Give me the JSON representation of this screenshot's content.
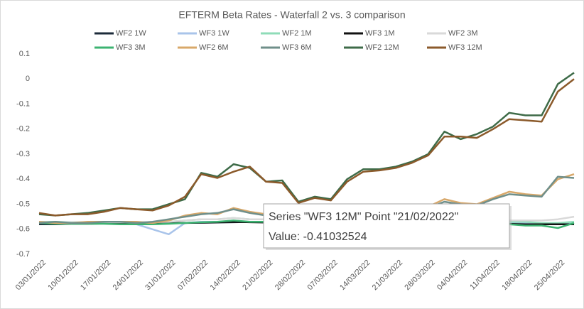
{
  "chart_data": {
    "type": "line",
    "title": "EFTERM Beta Rates - Waterfall 2 vs. 3 comparison",
    "legend": "top",
    "categories": [
      "03/01/2022",
      null,
      "10/01/2022",
      null,
      "17/01/2022",
      null,
      "24/01/2022",
      null,
      "31/01/2022",
      null,
      "07/02/2022",
      null,
      "14/02/2022",
      null,
      "21/02/2022",
      null,
      "28/02/2022",
      null,
      "07/03/2022",
      null,
      "14/03/2022",
      null,
      "21/03/2022",
      null,
      "28/03/2022",
      null,
      "04/04/2022",
      null,
      "11/04/2022",
      null,
      "18/04/2022",
      null,
      "25/04/2022",
      null
    ],
    "ylim": [
      -0.7,
      0.1
    ],
    "yticks": [
      0.1,
      0,
      -0.1,
      -0.2,
      -0.3,
      -0.4,
      -0.5,
      -0.6,
      -0.7
    ],
    "grid": false,
    "series": [
      {
        "name": "WF2 1W",
        "color": "#1c2b3a",
        "values": [
          -0.58,
          -0.58,
          -0.578,
          -0.578,
          -0.577,
          -0.577,
          -0.577,
          -0.576,
          -0.576,
          -0.575,
          -0.574,
          -0.573,
          -0.572,
          -0.571,
          -0.572,
          -0.572,
          -0.572,
          -0.571,
          -0.572,
          -0.571,
          -0.57,
          -0.57,
          -0.57,
          -0.57,
          -0.571,
          -0.572,
          -0.573,
          -0.574,
          -0.575,
          -0.576,
          -0.577,
          -0.578,
          -0.578,
          -0.577
        ]
      },
      {
        "name": "WF3 1W",
        "color": "#a9c4ea",
        "values": [
          -0.575,
          -0.575,
          -0.575,
          -0.575,
          -0.575,
          -0.575,
          -0.58,
          -0.6,
          -0.62,
          -0.575,
          -0.57,
          -0.57,
          -0.57,
          -0.57,
          -0.57,
          -0.57,
          -0.57,
          -0.57,
          -0.57,
          -0.565,
          -0.565,
          -0.565,
          -0.565,
          -0.565,
          -0.565,
          -0.565,
          -0.57,
          -0.57,
          -0.57,
          -0.575,
          -0.575,
          -0.578,
          -0.578,
          -0.575
        ]
      },
      {
        "name": "WF2 1M",
        "color": "#8fdcb8",
        "values": [
          -0.57,
          -0.57,
          -0.572,
          -0.572,
          -0.572,
          -0.57,
          -0.572,
          -0.572,
          -0.57,
          -0.565,
          -0.56,
          -0.56,
          -0.555,
          -0.56,
          -0.56,
          -0.565,
          -0.565,
          -0.565,
          -0.56,
          -0.56,
          -0.56,
          -0.56,
          -0.56,
          -0.56,
          -0.56,
          -0.56,
          -0.565,
          -0.565,
          -0.565,
          -0.57,
          -0.57,
          -0.575,
          -0.575,
          -0.57
        ]
      },
      {
        "name": "WF3 1M",
        "color": "#111111",
        "values": [
          -0.575,
          -0.575,
          -0.575,
          -0.575,
          -0.575,
          -0.575,
          -0.575,
          -0.575,
          -0.575,
          -0.575,
          -0.573,
          -0.572,
          -0.57,
          -0.572,
          -0.573,
          -0.573,
          -0.574,
          -0.574,
          -0.574,
          -0.573,
          -0.573,
          -0.573,
          -0.573,
          -0.573,
          -0.574,
          -0.575,
          -0.576,
          -0.577,
          -0.578,
          -0.579,
          -0.58,
          -0.58,
          -0.58,
          -0.58
        ]
      },
      {
        "name": "WF2 3M",
        "color": "#d9d9d9",
        "values": [
          -0.57,
          -0.572,
          -0.572,
          -0.572,
          -0.572,
          -0.572,
          -0.572,
          -0.572,
          -0.57,
          -0.565,
          -0.56,
          -0.56,
          -0.555,
          -0.56,
          -0.56,
          -0.56,
          -0.56,
          -0.56,
          -0.56,
          -0.56,
          -0.56,
          -0.56,
          -0.56,
          -0.56,
          -0.56,
          -0.56,
          -0.565,
          -0.565,
          -0.56,
          -0.565,
          -0.565,
          -0.565,
          -0.56,
          -0.55
        ]
      },
      {
        "name": "WF3 3M",
        "color": "#3cb371",
        "values": [
          -0.575,
          -0.578,
          -0.578,
          -0.578,
          -0.578,
          -0.58,
          -0.58,
          -0.58,
          -0.578,
          -0.575,
          -0.572,
          -0.57,
          -0.565,
          -0.57,
          -0.57,
          -0.57,
          -0.57,
          -0.57,
          -0.57,
          -0.57,
          -0.57,
          -0.57,
          -0.57,
          -0.57,
          -0.572,
          -0.575,
          -0.575,
          -0.578,
          -0.58,
          -0.58,
          -0.585,
          -0.585,
          -0.595,
          -0.575
        ]
      },
      {
        "name": "WF2 6M",
        "color": "#d8a86a",
        "values": [
          -0.57,
          -0.575,
          -0.575,
          -0.57,
          -0.57,
          -0.57,
          -0.57,
          -0.575,
          -0.565,
          -0.545,
          -0.535,
          -0.54,
          -0.515,
          -0.53,
          -0.54,
          -0.545,
          -0.55,
          -0.545,
          -0.55,
          -0.535,
          -0.525,
          -0.53,
          -0.525,
          -0.52,
          -0.51,
          -0.48,
          -0.495,
          -0.5,
          -0.475,
          -0.45,
          -0.46,
          -0.465,
          -0.4,
          -0.38
        ]
      },
      {
        "name": "WF3 6M",
        "color": "#6f8f8a",
        "values": [
          -0.575,
          -0.57,
          -0.575,
          -0.575,
          -0.57,
          -0.57,
          -0.575,
          -0.57,
          -0.56,
          -0.55,
          -0.54,
          -0.535,
          -0.52,
          -0.535,
          -0.545,
          -0.545,
          -0.555,
          -0.55,
          -0.55,
          -0.54,
          -0.53,
          -0.53,
          -0.53,
          -0.52,
          -0.515,
          -0.49,
          -0.5,
          -0.505,
          -0.48,
          -0.46,
          -0.465,
          -0.47,
          -0.39,
          -0.395
        ]
      },
      {
        "name": "WF2 12M",
        "color": "#3e6b48",
        "values": [
          -0.54,
          -0.545,
          -0.54,
          -0.535,
          -0.525,
          -0.515,
          -0.52,
          -0.52,
          -0.5,
          -0.48,
          -0.375,
          -0.39,
          -0.34,
          -0.355,
          -0.41,
          -0.405,
          -0.49,
          -0.47,
          -0.48,
          -0.4,
          -0.36,
          -0.36,
          -0.35,
          -0.33,
          -0.3,
          -0.21,
          -0.24,
          -0.22,
          -0.19,
          -0.135,
          -0.145,
          -0.145,
          -0.02,
          0.025
        ]
      },
      {
        "name": "WF3 12M",
        "color": "#8b5a2b",
        "values": [
          -0.535,
          -0.545,
          -0.54,
          -0.54,
          -0.53,
          -0.515,
          -0.52,
          -0.525,
          -0.505,
          -0.47,
          -0.38,
          -0.395,
          -0.37,
          -0.35,
          -0.41,
          -0.415,
          -0.495,
          -0.475,
          -0.485,
          -0.41,
          -0.37,
          -0.365,
          -0.355,
          -0.335,
          -0.305,
          -0.23,
          -0.23,
          -0.235,
          -0.2,
          -0.16,
          -0.165,
          -0.17,
          -0.05,
          0.0
        ]
      }
    ],
    "tooltip": {
      "line1": "Series \"WF3 12M\" Point \"21/02/2022\"",
      "line2": "Value: -0.41032524"
    }
  }
}
